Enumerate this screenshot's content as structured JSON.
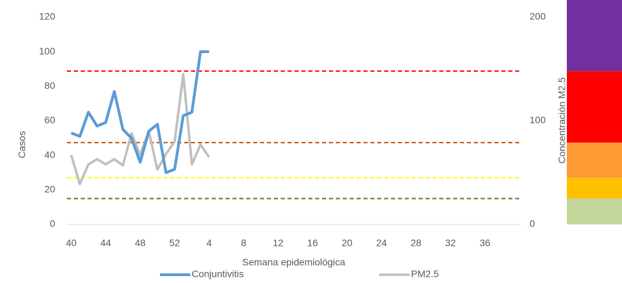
{
  "chart_data": {
    "type": "line",
    "x_label": "Semana epidemiológica",
    "y_label": "Casos",
    "y2_label": "Concentración M2.5",
    "categories": [
      40,
      null,
      null,
      null,
      44,
      null,
      null,
      null,
      48,
      null,
      null,
      null,
      52,
      null,
      null,
      null,
      4,
      null,
      null,
      null,
      8,
      null,
      null,
      null,
      12,
      null,
      null,
      null,
      16,
      null,
      null,
      null,
      20,
      null,
      null,
      null,
      24,
      null,
      null,
      null,
      28,
      null,
      null,
      null,
      32,
      null,
      null,
      null,
      36,
      null,
      null,
      null
    ],
    "series": [
      {
        "name": "Conjuntivitis",
        "color": "#5b9bd5",
        "axis": "y",
        "values": [
          53,
          51,
          65,
          57,
          59,
          77,
          55,
          50,
          36,
          54,
          58,
          30,
          32,
          63,
          65,
          100,
          100,
          null,
          null,
          null,
          null,
          null,
          null,
          null,
          null,
          null,
          null,
          null,
          null,
          null,
          null,
          null,
          null,
          null,
          null,
          null,
          null,
          null,
          null,
          null,
          null,
          null,
          null,
          null,
          null,
          null,
          null,
          null,
          null,
          null,
          null,
          null
        ]
      },
      {
        "name": "PM2.5",
        "color": "#bfbfbf",
        "axis": "y2",
        "values": [
          67,
          39,
          58,
          63,
          58,
          63,
          57,
          88,
          67,
          90,
          53,
          68,
          80,
          145,
          58,
          77,
          65,
          null,
          null,
          null,
          null,
          null,
          null,
          null,
          null,
          null,
          null,
          null,
          null,
          null,
          null,
          null,
          null,
          null,
          null,
          null,
          null,
          null,
          null,
          null,
          null,
          null,
          null,
          null,
          null,
          null,
          null,
          null,
          null,
          null,
          null,
          null
        ]
      }
    ],
    "ylim": [
      0,
      120
    ],
    "yticks": [
      0,
      20,
      40,
      60,
      80,
      100,
      120
    ],
    "y2lim": [
      0,
      200
    ],
    "y2ticks": [
      0,
      100,
      200
    ],
    "reference_lines": [
      {
        "value": 148,
        "color": "#ff0000"
      },
      {
        "value": 79,
        "color": "#c55a11"
      },
      {
        "value": 45,
        "color": "#ffff00"
      },
      {
        "value": 25,
        "color": "#548235"
      }
    ],
    "color_scale": [
      {
        "to": 25,
        "color": "#c4d79b"
      },
      {
        "to": 45,
        "color": "#ffc000"
      },
      {
        "to": 79,
        "color": "#ff9933"
      },
      {
        "to": 148,
        "color": "#ff0000"
      },
      {
        "to": 217,
        "color": "#7030a0"
      }
    ],
    "legend": "bottom"
  }
}
